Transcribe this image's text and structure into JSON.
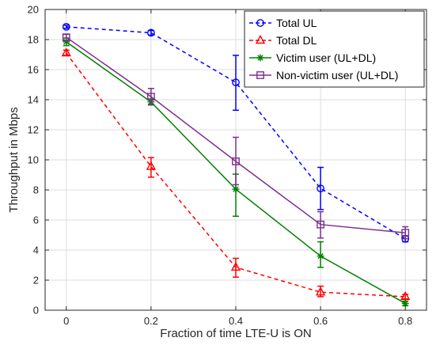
{
  "chart_data": {
    "type": "line",
    "title": "",
    "xlabel": "Fraction of time LTE-U is ON",
    "ylabel": "Throughput in Mbps",
    "x": [
      0,
      0.2,
      0.4,
      0.6,
      0.8
    ],
    "xlim": [
      -0.05,
      0.85
    ],
    "ylim": [
      0,
      20
    ],
    "xticks": [
      "0",
      "0.2",
      "0.4",
      "0.6",
      "0.8"
    ],
    "yticks": [
      "0",
      "2",
      "4",
      "6",
      "8",
      "10",
      "12",
      "14",
      "16",
      "18",
      "20"
    ],
    "grid": true,
    "legend_position": "top-right",
    "series": [
      {
        "name": "Total UL",
        "color": "#0000ff",
        "line_style": "dashed",
        "marker": "circle",
        "values": [
          18.85,
          18.45,
          15.15,
          8.1,
          4.75
        ],
        "err_low": [
          18.75,
          18.3,
          13.3,
          6.7,
          4.55
        ],
        "err_high": [
          18.95,
          18.6,
          16.95,
          9.5,
          4.95
        ]
      },
      {
        "name": "Total DL",
        "color": "#ff0000",
        "line_style": "dashed",
        "marker": "triangle",
        "values": [
          17.1,
          9.55,
          2.85,
          1.2,
          0.9
        ],
        "err_low": [
          16.95,
          8.85,
          2.2,
          0.9,
          0.75
        ],
        "err_high": [
          17.3,
          10.15,
          3.45,
          1.6,
          1.05
        ]
      },
      {
        "name": "Victim user (UL+DL)",
        "color": "#008000",
        "line_style": "solid",
        "marker": "star",
        "values": [
          17.85,
          13.85,
          8.05,
          3.6,
          0.45
        ],
        "err_low": [
          17.6,
          13.65,
          6.25,
          2.85,
          0.3
        ],
        "err_high": [
          18.1,
          14.05,
          9.05,
          4.55,
          0.6
        ]
      },
      {
        "name": "Non-victim user (UL+DL)",
        "color": "#7e2f8e",
        "line_style": "solid",
        "marker": "square",
        "values": [
          18.15,
          14.2,
          9.9,
          5.7,
          5.15
        ],
        "err_low": [
          17.95,
          13.7,
          8.35,
          4.8,
          4.75
        ],
        "err_high": [
          18.35,
          14.75,
          11.5,
          6.55,
          5.55
        ]
      }
    ]
  }
}
